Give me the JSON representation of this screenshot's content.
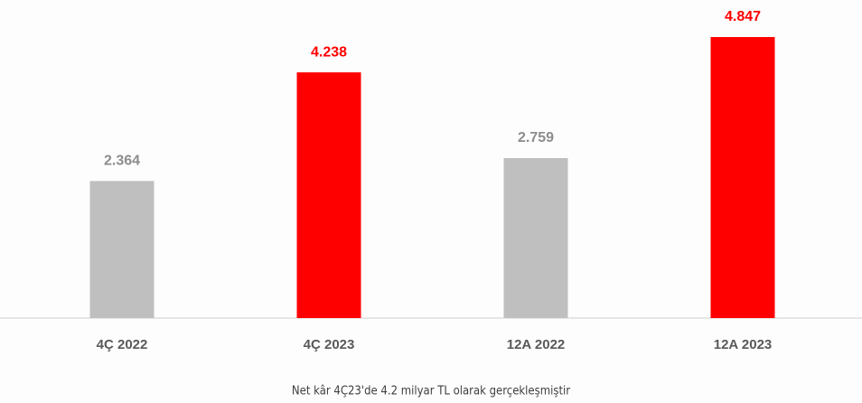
{
  "chart_data": {
    "type": "bar",
    "categories": [
      "4Ç 2022",
      "4Ç 2023",
      "12A 2022",
      "12A 2023"
    ],
    "values": [
      2.364,
      4.238,
      2.759,
      4.847
    ],
    "colors": [
      "#bfbfbf",
      "#ff0000",
      "#bfbfbf",
      "#ff0000"
    ],
    "label_colors": [
      "#8c8c8c",
      "#ff0000",
      "#8c8c8c",
      "#ff0000"
    ],
    "caption": "Net kâr 4Ç23'de 4.2 milyar TL olarak gerçekleşmiştir"
  }
}
